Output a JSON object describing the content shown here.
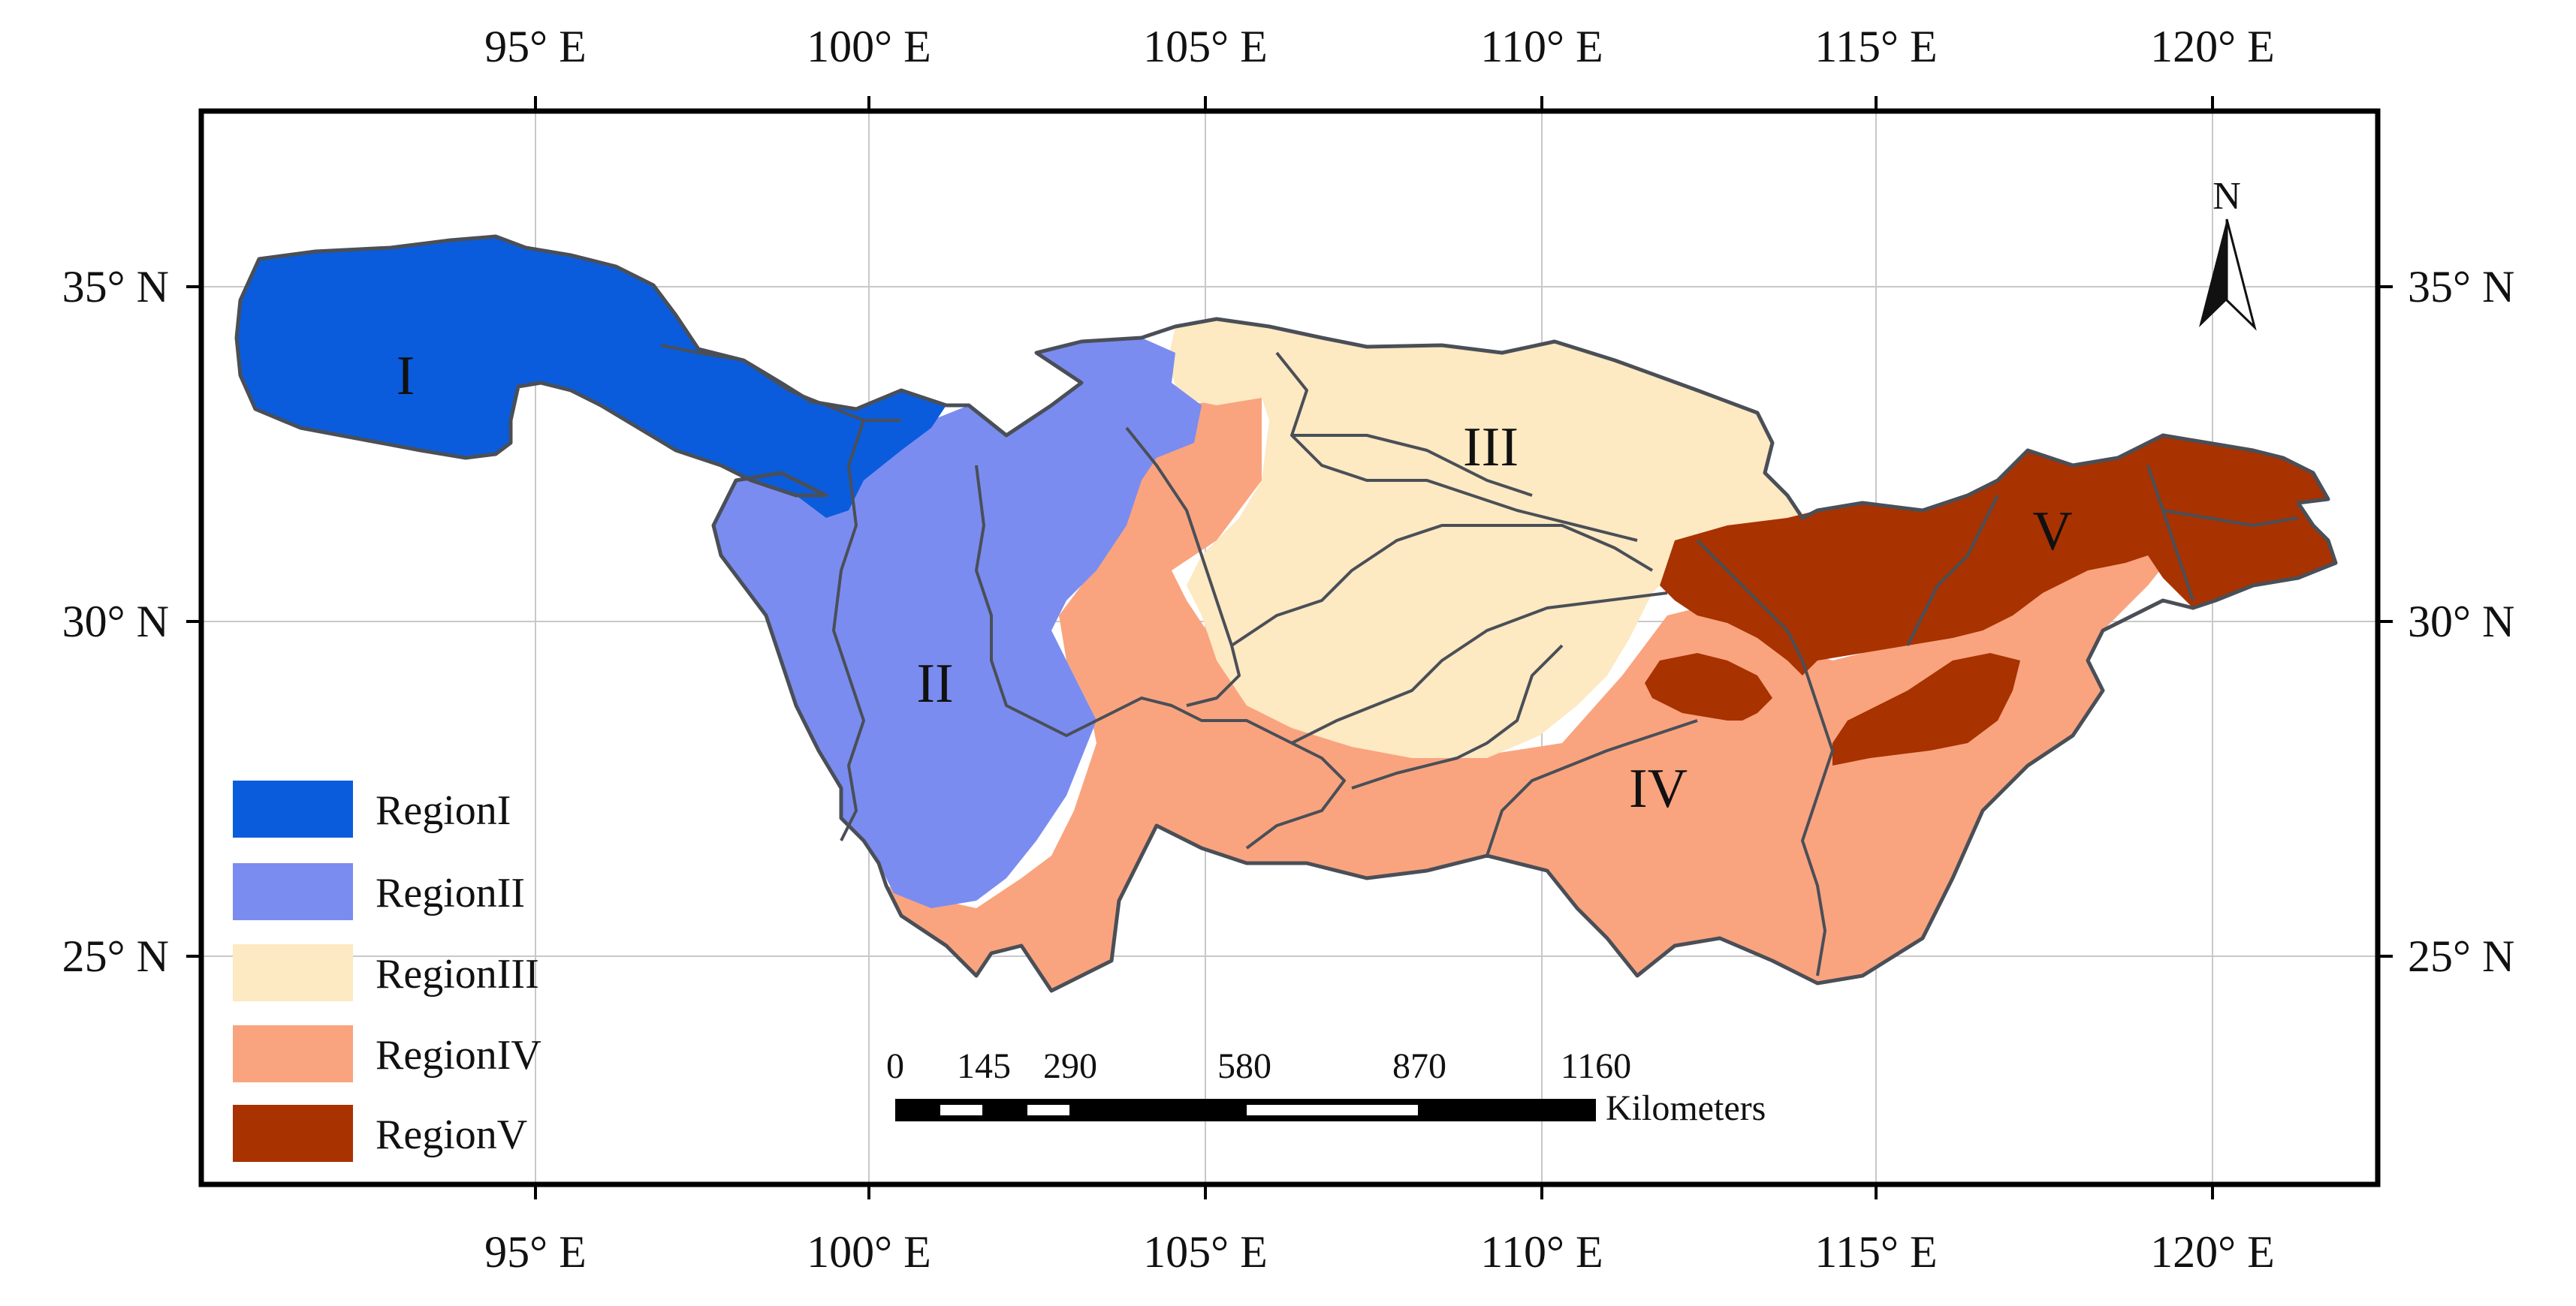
{
  "map": {
    "lon_ticks": [
      "95° E",
      "100° E",
      "105° E",
      "110° E",
      "115° E",
      "120° E"
    ],
    "lat_ticks": [
      "35° N",
      "30° N",
      "25° N"
    ],
    "region_labels": [
      "I",
      "II",
      "III",
      "IV",
      "V"
    ],
    "north_arrow": "N",
    "colors": {
      "region_1": "#0a5cdc",
      "region_2": "#7b8cf0",
      "region_3": "#fde9c2",
      "region_4": "#f9a47f",
      "region_5": "#a83200",
      "boundary": "#4a4f57",
      "grid": "#c8c8c8"
    }
  },
  "legend": {
    "items": [
      {
        "label": "RegionI",
        "color": "#0a5cdc"
      },
      {
        "label": "RegionII",
        "color": "#7b8cf0"
      },
      {
        "label": "RegionIII",
        "color": "#fde9c2"
      },
      {
        "label": "RegionIV",
        "color": "#f9a47f"
      },
      {
        "label": "RegionV",
        "color": "#a83200"
      }
    ]
  },
  "scale_bar": {
    "ticks": [
      "0",
      "145",
      "290",
      "580",
      "870",
      "1160"
    ],
    "unit": "Kilometers"
  }
}
